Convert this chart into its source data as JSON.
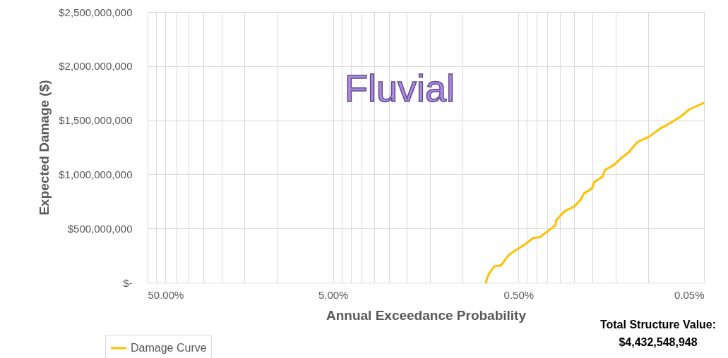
{
  "chart_data": {
    "type": "line",
    "title": "Fluvial",
    "xlabel": "Annual Exceedance Probability",
    "ylabel": "Expected Damage ($)",
    "log": "x",
    "grid": true,
    "legend": "bottom left",
    "marker": "none",
    "line_style": "solid",
    "xlim": [
      50,
      0.05
    ],
    "xticks": [
      {
        "value": 50,
        "label": "50.00%"
      },
      {
        "value": 45,
        "label": null
      },
      {
        "value": 40,
        "label": null
      },
      {
        "value": 35,
        "label": null
      },
      {
        "value": 30,
        "label": null
      },
      {
        "value": 25,
        "label": null
      },
      {
        "value": 20,
        "label": null
      },
      {
        "value": 15,
        "label": null
      },
      {
        "value": 10,
        "label": null
      },
      {
        "value": 5,
        "label": "5.00%"
      },
      {
        "value": 4.5,
        "label": null
      },
      {
        "value": 4,
        "label": null
      },
      {
        "value": 3.5,
        "label": null
      },
      {
        "value": 3,
        "label": null
      },
      {
        "value": 2.5,
        "label": null
      },
      {
        "value": 2,
        "label": null
      },
      {
        "value": 1.5,
        "label": null
      },
      {
        "value": 1,
        "label": null
      },
      {
        "value": 0.5,
        "label": "0.50%"
      },
      {
        "value": 0.45,
        "label": null
      },
      {
        "value": 0.4,
        "label": null
      },
      {
        "value": 0.35,
        "label": null
      },
      {
        "value": 0.3,
        "label": null
      },
      {
        "value": 0.25,
        "label": null
      },
      {
        "value": 0.2,
        "label": null
      },
      {
        "value": 0.15,
        "label": null
      },
      {
        "value": 0.1,
        "label": null
      },
      {
        "value": 0.05,
        "label": "0.05%"
      }
    ],
    "ylim": [
      0,
      2500000000
    ],
    "yticks": [
      {
        "value": 0,
        "label": "$-"
      },
      {
        "value": 500000000,
        "label": "$500,000,000"
      },
      {
        "value": 1000000000,
        "label": "$1,000,000,000"
      },
      {
        "value": 1500000000,
        "label": "$1,500,000,000"
      },
      {
        "value": 2000000000,
        "label": "$2,000,000,000"
      },
      {
        "value": 2500000000,
        "label": "$2,500,000,000"
      }
    ],
    "x": [
      0.75,
      0.728,
      0.676,
      0.62,
      0.568,
      0.528,
      0.456,
      0.418,
      0.383,
      0.316,
      0.312,
      0.282,
      0.251,
      0.23,
      0.223,
      0.201,
      0.195,
      0.176,
      0.171,
      0.152,
      0.14,
      0.128,
      0.114,
      0.0984,
      0.085,
      0.0802,
      0.0673,
      0.0599,
      0.0502
    ],
    "series": [
      {
        "name": "Damage Curve",
        "color": "#ffc000",
        "values": [
          0,
          70000000,
          150000000,
          160000000,
          250000000,
          290000000,
          360000000,
          410000000,
          420000000,
          530000000,
          580000000,
          660000000,
          700000000,
          770000000,
          820000000,
          870000000,
          930000000,
          980000000,
          1040000000,
          1090000000,
          1150000000,
          1200000000,
          1300000000,
          1350000000,
          1430000000,
          1450000000,
          1530000000,
          1600000000,
          1660000000
        ]
      }
    ],
    "annotations": [
      "Total Structure Value:\n$4,432,548,948"
    ]
  }
}
